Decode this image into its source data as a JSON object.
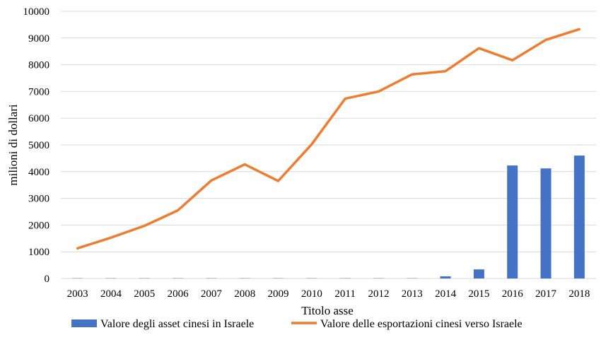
{
  "chart_data": {
    "type": "bar",
    "categories": [
      "2003",
      "2004",
      "2005",
      "2006",
      "2007",
      "2008",
      "2009",
      "2010",
      "2011",
      "2012",
      "2013",
      "2014",
      "2015",
      "2016",
      "2017",
      "2018"
    ],
    "series": [
      {
        "name": "Valore degli asset cinesi in Israele",
        "type": "bar",
        "color": "#4472c4",
        "values": [
          10,
          10,
          10,
          10,
          10,
          10,
          10,
          10,
          10,
          10,
          10,
          80,
          340,
          4230,
          4120,
          4600
        ]
      },
      {
        "name": "Valore delle esportazioni cinesi verso Israele",
        "type": "line",
        "color": "#ed7d31",
        "values": [
          1130,
          1530,
          1970,
          2550,
          3670,
          4270,
          3650,
          5020,
          6730,
          7000,
          7640,
          7760,
          8620,
          8170,
          8930,
          9330
        ]
      }
    ],
    "ylim": [
      0,
      10000
    ],
    "yticks": [
      0,
      1000,
      2000,
      3000,
      4000,
      5000,
      6000,
      7000,
      8000,
      9000,
      10000
    ],
    "xlabel": "Titolo asse",
    "ylabel": "milioni di dollari",
    "grid": true,
    "legend": "bottom"
  }
}
